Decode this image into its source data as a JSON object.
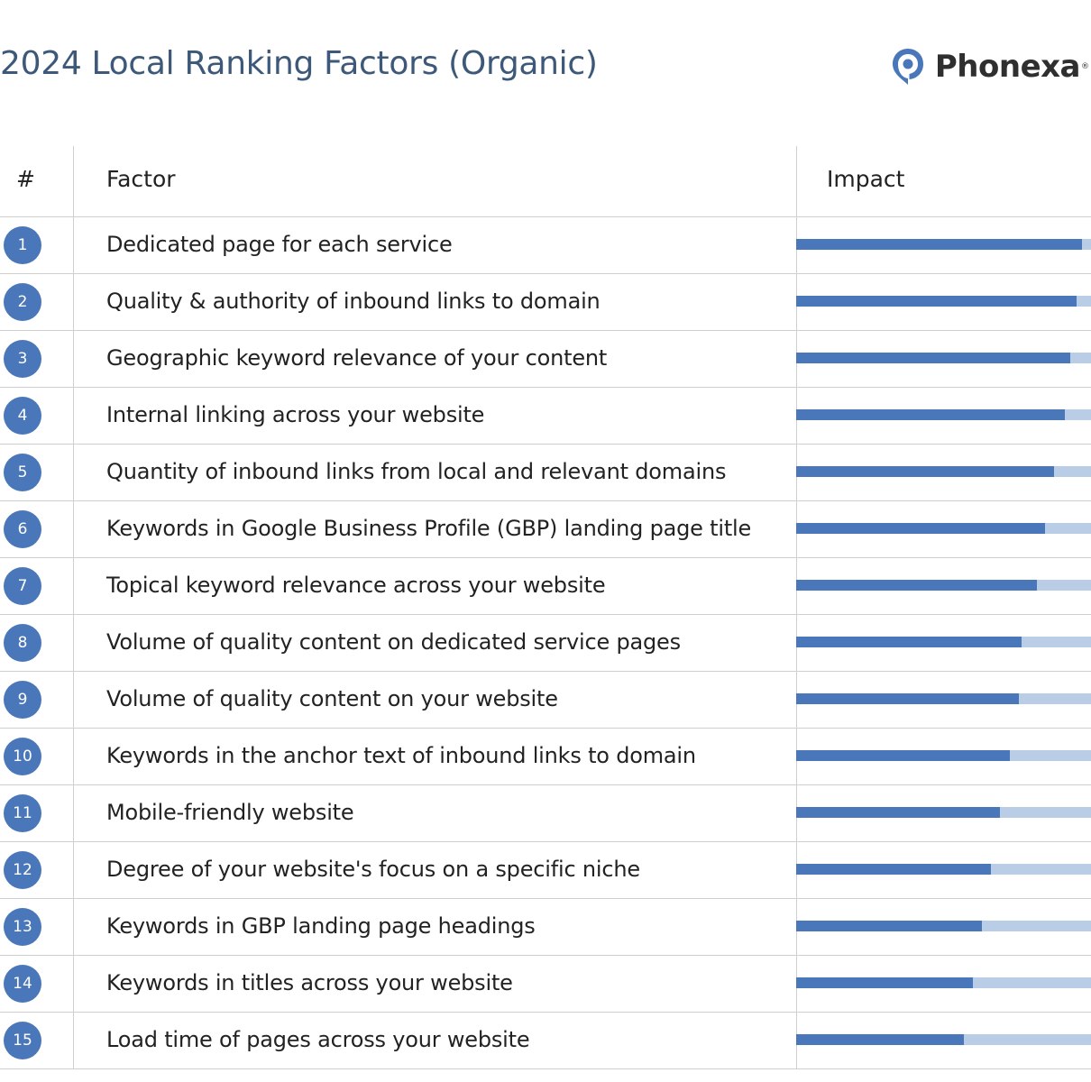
{
  "header": {
    "title": "2024 Local Ranking Factors (Organic)",
    "brand_name": "Phonexa",
    "brand_mark": "®",
    "brand_icon": "location-pin-icon"
  },
  "colors": {
    "accent": "#4a77b9",
    "bar_track": "#b9cde6",
    "title": "#3d5878"
  },
  "chart_data": {
    "type": "table",
    "columns": [
      "#",
      "Factor",
      "Impact"
    ],
    "rows": [
      {
        "rank": "1",
        "factor": "Dedicated page for each service",
        "impact": 0.97
      },
      {
        "rank": "2",
        "factor": "Quality & authority of inbound links to domain",
        "impact": 0.95
      },
      {
        "rank": "3",
        "factor": "Geographic keyword relevance of your content",
        "impact": 0.93
      },
      {
        "rank": "4",
        "factor": "Internal linking across your website",
        "impact": 0.91
      },
      {
        "rank": "5",
        "factor": "Quantity of inbound links from local and relevant domains",
        "impact": 0.875
      },
      {
        "rank": "6",
        "factor": "Keywords in Google Business Profile (GBP) landing page title",
        "impact": 0.845
      },
      {
        "rank": "7",
        "factor": "Topical keyword relevance across your website",
        "impact": 0.815
      },
      {
        "rank": "8",
        "factor": "Volume of quality content on dedicated service pages",
        "impact": 0.765
      },
      {
        "rank": "9",
        "factor": "Volume of quality content on your website",
        "impact": 0.755
      },
      {
        "rank": "10",
        "factor": "Keywords in the anchor text of inbound links to domain",
        "impact": 0.725
      },
      {
        "rank": "11",
        "factor": "Mobile-friendly website",
        "impact": 0.69
      },
      {
        "rank": "12",
        "factor": "Degree of your website's focus on a specific niche",
        "impact": 0.66
      },
      {
        "rank": "13",
        "factor": "Keywords in GBP landing page headings",
        "impact": 0.63
      },
      {
        "rank": "14",
        "factor": "Keywords in titles across your website",
        "impact": 0.6
      },
      {
        "rank": "15",
        "factor": "Load time of pages across your website",
        "impact": 0.57
      }
    ]
  }
}
